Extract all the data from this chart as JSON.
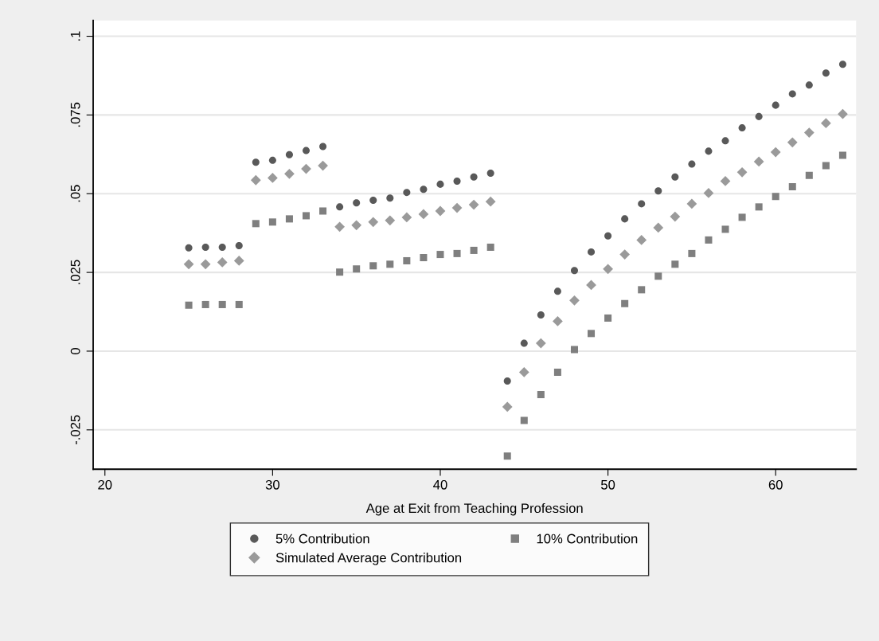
{
  "chart_data": {
    "type": "scatter",
    "xlabel": "Age at Exit from Teaching Profession",
    "x": [
      25,
      26,
      27,
      28,
      29,
      30,
      31,
      32,
      33,
      34,
      35,
      36,
      37,
      38,
      39,
      40,
      41,
      42,
      43,
      44,
      45,
      46,
      47,
      48,
      49,
      50,
      51,
      52,
      53,
      54,
      55,
      56,
      57,
      58,
      59,
      60,
      61,
      62,
      63,
      64
    ],
    "series": [
      {
        "name": "5% Contribution",
        "color": "#595959",
        "marker": "circle",
        "values": [
          0.0328,
          0.033,
          0.033,
          0.0335,
          0.06,
          0.0606,
          0.0624,
          0.0637,
          0.065,
          0.0458,
          0.0471,
          0.0479,
          0.0486,
          0.0504,
          0.0514,
          0.053,
          0.054,
          0.0553,
          0.0565,
          -0.0095,
          0.0025,
          0.0115,
          0.019,
          0.0256,
          0.0315,
          0.0366,
          0.042,
          0.0468,
          0.0509,
          0.0553,
          0.0594,
          0.0635,
          0.0668,
          0.0709,
          0.0745,
          0.0781,
          0.0817,
          0.0845,
          0.0883,
          0.0911
        ]
      },
      {
        "name": "Simulated Average Contribution",
        "color": "#9a9a9a",
        "marker": "diamond",
        "values": [
          0.0276,
          0.0276,
          0.0282,
          0.0287,
          0.0543,
          0.055,
          0.0563,
          0.0579,
          0.0589,
          0.0395,
          0.04,
          0.041,
          0.0415,
          0.0425,
          0.0435,
          0.0445,
          0.0455,
          0.0465,
          0.0475,
          -0.0177,
          -0.0067,
          0.0025,
          0.0095,
          0.0161,
          0.021,
          0.0261,
          0.0307,
          0.0353,
          0.0392,
          0.0427,
          0.0468,
          0.0502,
          0.054,
          0.0568,
          0.0602,
          0.0632,
          0.0663,
          0.0694,
          0.0724,
          0.0753
        ]
      },
      {
        "name": "10% Contribution",
        "color": "#7f7f7f",
        "marker": "square",
        "values": [
          0.0146,
          0.0148,
          0.0148,
          0.0148,
          0.0405,
          0.041,
          0.042,
          0.043,
          0.0445,
          0.0251,
          0.0261,
          0.0271,
          0.0276,
          0.0287,
          0.0297,
          0.0307,
          0.031,
          0.032,
          0.033,
          -0.0333,
          -0.022,
          -0.0138,
          -0.0067,
          0.0005,
          0.0056,
          0.0105,
          0.0151,
          0.0195,
          0.0238,
          0.0276,
          0.031,
          0.0353,
          0.0387,
          0.0425,
          0.0458,
          0.0491,
          0.0522,
          0.0558,
          0.0589,
          0.0622
        ]
      }
    ],
    "xlim": [
      19.3,
      64.8
    ],
    "xticks": [
      20,
      30,
      40,
      50,
      60
    ],
    "ylim": [
      -0.0375,
      0.105
    ],
    "yticks": [
      {
        "value": -0.025,
        "label": "-.025"
      },
      0,
      {
        "value": 0.025,
        "label": ".025"
      },
      {
        "value": 0.05,
        "label": ".05"
      },
      {
        "value": 0.075,
        "label": ".075"
      },
      {
        "value": 0.1,
        "label": ".1"
      }
    ],
    "grid": "y",
    "legend": "bottom"
  }
}
